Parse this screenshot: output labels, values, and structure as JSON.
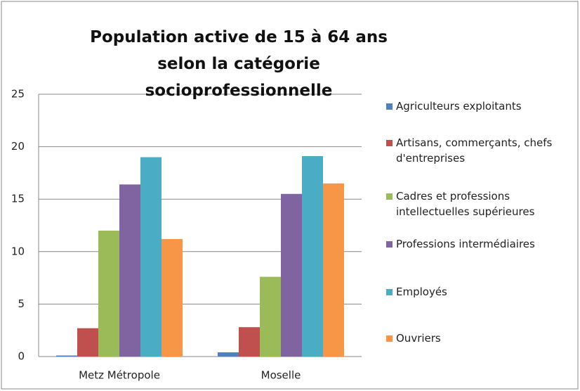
{
  "chart_data": {
    "type": "bar",
    "title": "Population active de 15 à 64 ans selon la catégorie socioprofessionnelle",
    "categories": [
      "Metz Métropole",
      "Moselle"
    ],
    "series": [
      {
        "name": "Agriculteurs exploitants",
        "color": "#4f81bd",
        "values": [
          0.1,
          0.4
        ]
      },
      {
        "name": "Artisans, commerçants, chefs d'entreprises",
        "color": "#c0504d",
        "values": [
          2.7,
          2.8
        ]
      },
      {
        "name": "Cadres et professions intellectuelles supérieures",
        "color": "#9bbb59",
        "values": [
          12.0,
          7.6
        ]
      },
      {
        "name": "Professions intermédiaires",
        "color": "#8064a2",
        "values": [
          16.4,
          15.5
        ]
      },
      {
        "name": "Employés",
        "color": "#4bacc6",
        "values": [
          19.0,
          19.1
        ]
      },
      {
        "name": "Ouvriers",
        "color": "#f79646",
        "values": [
          11.2,
          16.5
        ]
      }
    ],
    "ylim": [
      0,
      25
    ],
    "yticks": [
      0,
      5,
      10,
      15,
      20,
      25
    ],
    "grid": true,
    "legend": "right"
  }
}
